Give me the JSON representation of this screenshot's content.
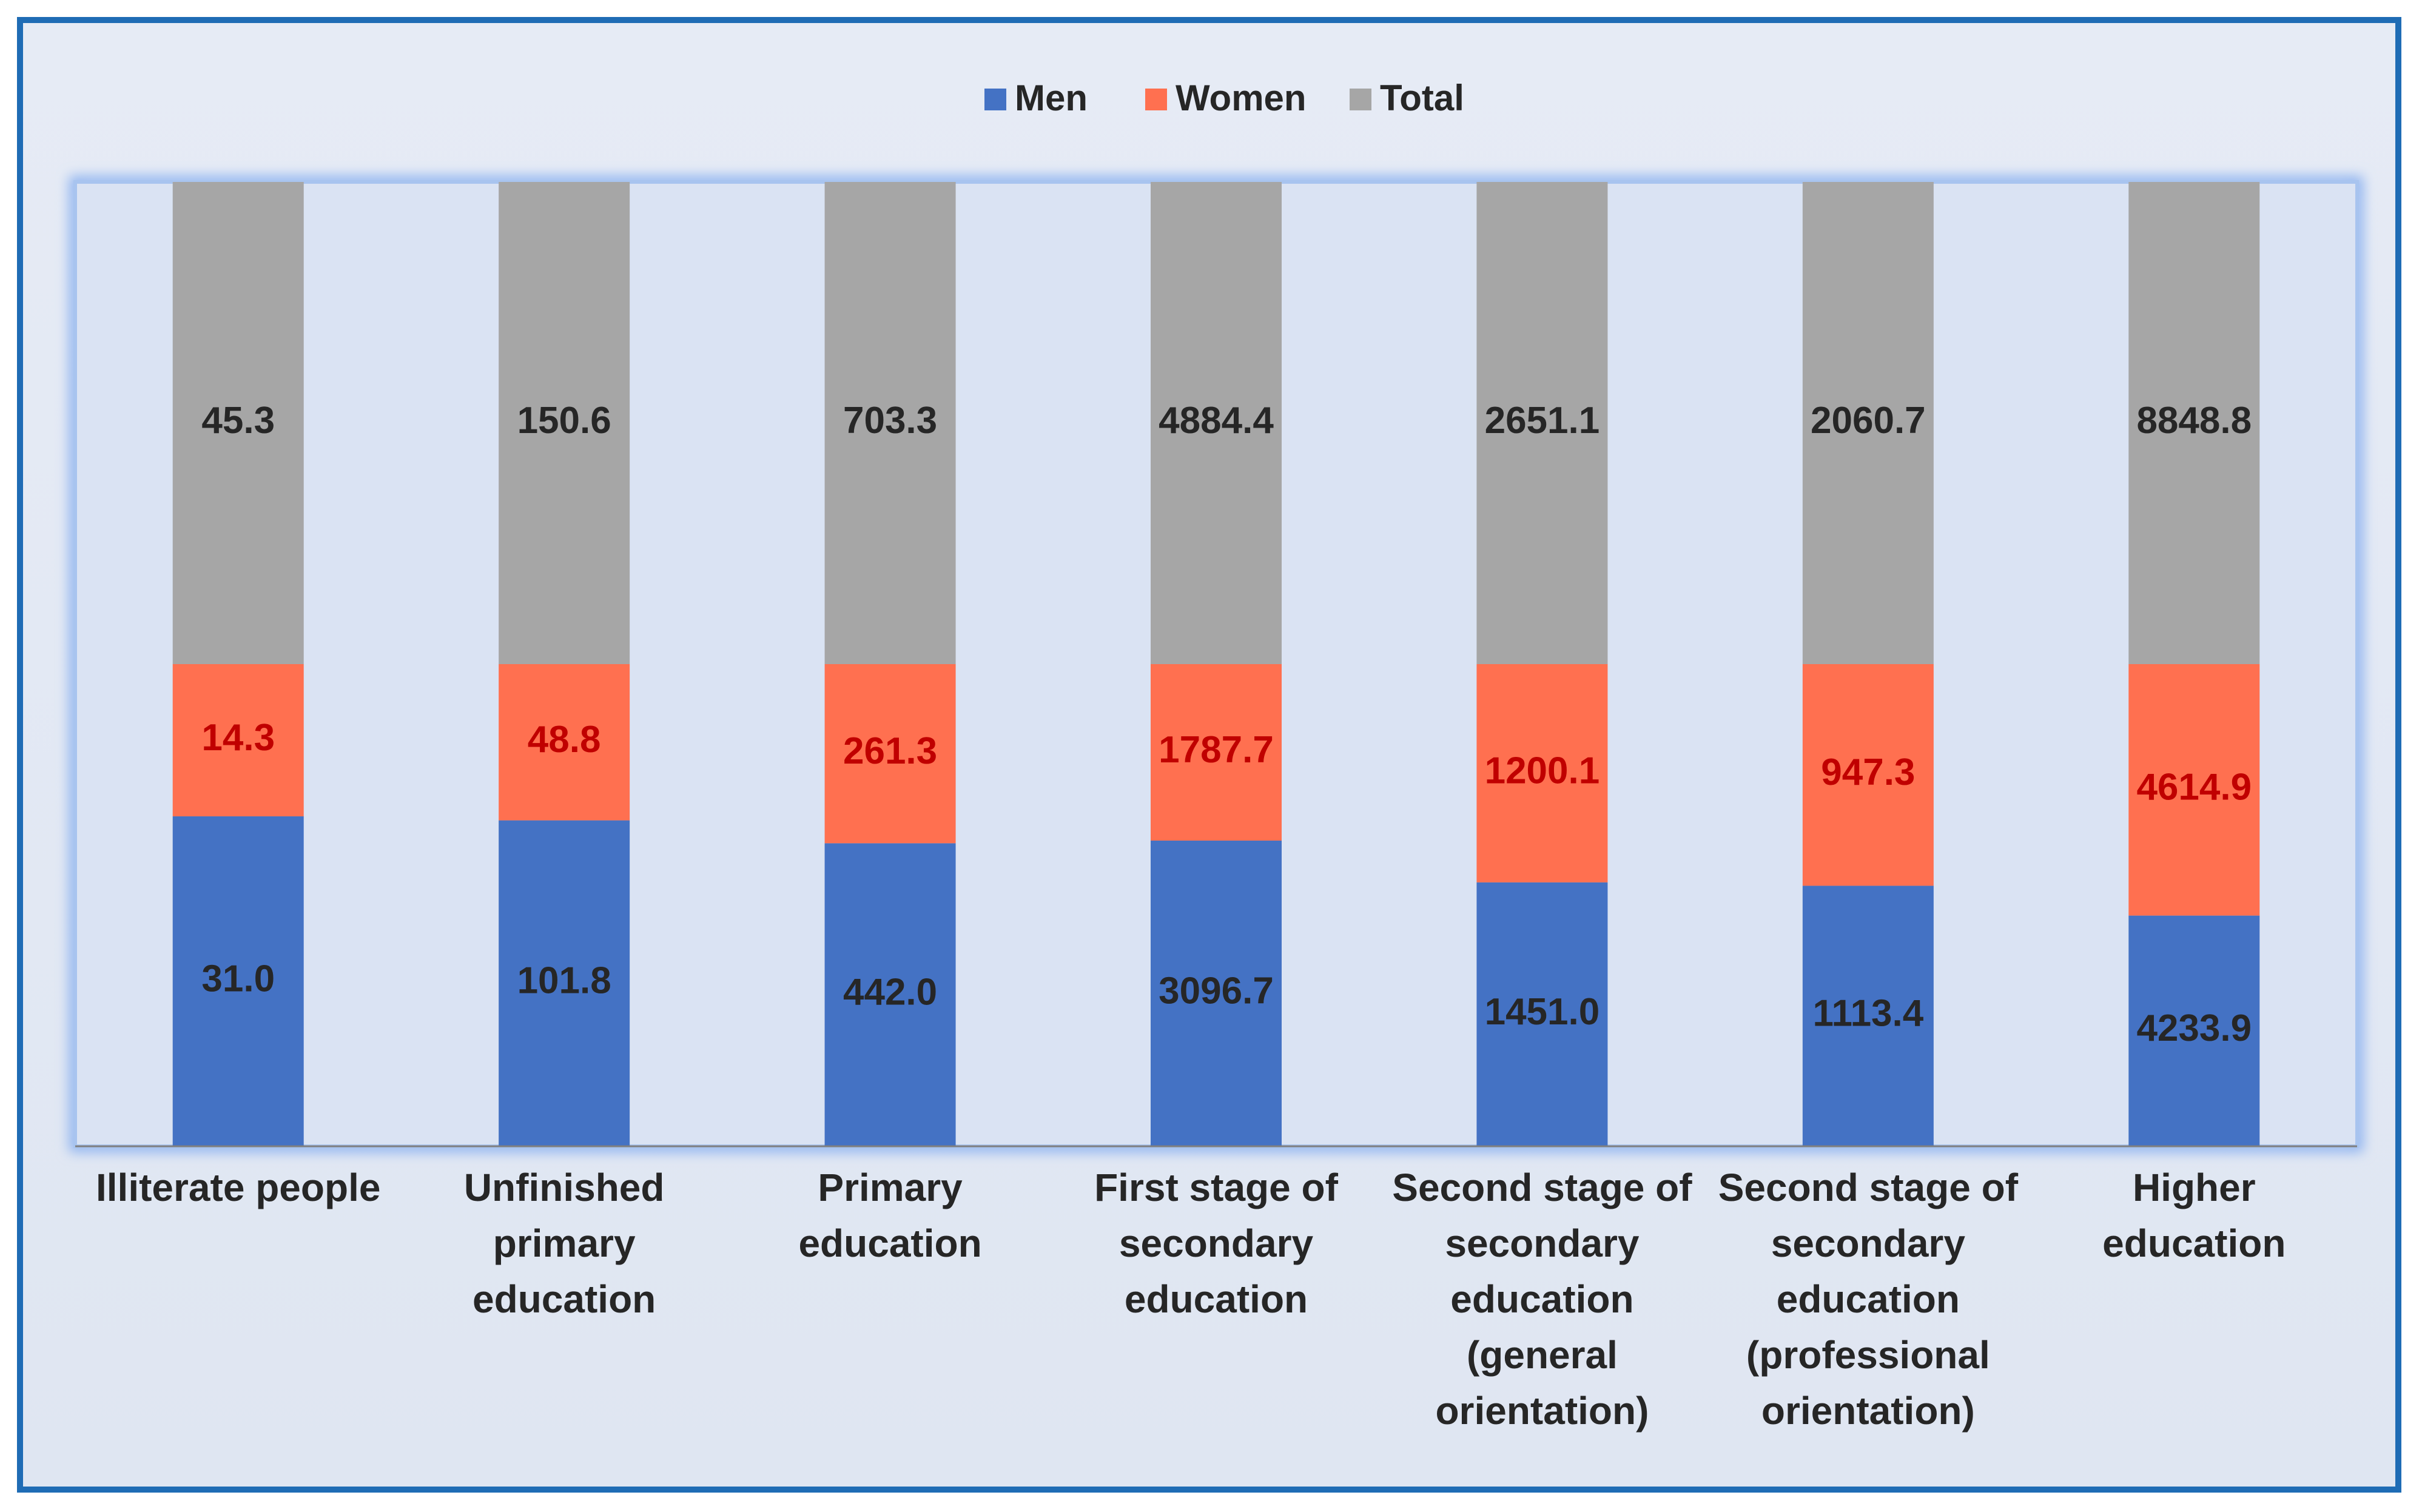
{
  "chart_data": {
    "type": "bar",
    "stacked": "percent",
    "categories": [
      [
        "Illiterate people"
      ],
      [
        "Unfinished",
        "primary",
        "education"
      ],
      [
        "Primary",
        "education"
      ],
      [
        "First stage of",
        "secondary",
        "education"
      ],
      [
        "Second stage of",
        "secondary",
        "education",
        "(general",
        "orientation)"
      ],
      [
        "Second stage of",
        "secondary",
        "education",
        "(professional",
        "orientation)"
      ],
      [
        "Higher",
        "education"
      ]
    ],
    "series": [
      {
        "name": "Men",
        "color": "#4472c4",
        "label_color": "#262626",
        "values": [
          "31.0",
          "101.8",
          "442.0",
          "3096.7",
          "1451.0",
          "1113.4",
          "4233.9"
        ]
      },
      {
        "name": "Women",
        "color": "#ff7050",
        "label_color": "#c00000",
        "values": [
          "14.3",
          "48.8",
          "261.3",
          "1787.7",
          "1200.1",
          "947.3",
          "4614.9"
        ]
      },
      {
        "name": "Total",
        "color": "#a6a6a6",
        "label_color": "#262626",
        "values": [
          "45.3",
          "150.6",
          "703.3",
          "4884.4",
          "2651.1",
          "2060.7",
          "8848.8"
        ]
      }
    ],
    "legend_position": "top-center",
    "grid": false,
    "title": "",
    "xlabel": "",
    "ylabel": ""
  }
}
